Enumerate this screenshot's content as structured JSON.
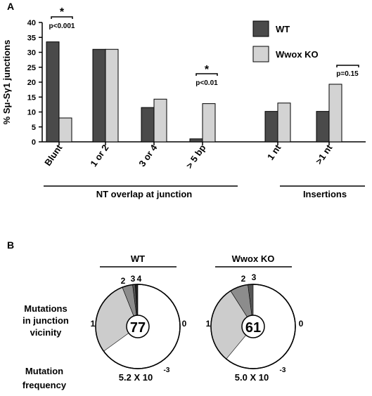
{
  "panels": {
    "a": {
      "label": "A"
    },
    "b": {
      "label": "B"
    }
  },
  "colors": {
    "wt": "#4a4a4a",
    "ko": "#d3d3d3",
    "pie_background": "#ffffff",
    "pie_cat1": "#cccccc",
    "pie_cat2": "#8c8c8c",
    "pie_cat3": "#555555",
    "pie_cat4": "#222222"
  },
  "chart_data": [
    {
      "type": "bar",
      "panel": "A",
      "categories": [
        "Blunt",
        "1 or 2",
        "3 or 4",
        "> 5 bp",
        "1 nt",
        ">1 nt"
      ],
      "series": [
        {
          "name": "WT",
          "values": [
            33.5,
            31,
            11.5,
            1,
            10.2,
            10.2
          ]
        },
        {
          "name": "Wwox KO",
          "values": [
            8,
            31,
            14.3,
            12.8,
            13,
            19.3
          ]
        }
      ],
      "ylabel": "% Sμ-Sγ1 junctions",
      "ylim": [
        0,
        40
      ],
      "yticks": [
        "0",
        "5",
        "10",
        "15",
        "20",
        "25",
        "30",
        "35",
        "40"
      ],
      "legend": {
        "position": "top-right",
        "wt_label": "WT",
        "ko_label": "Wwox KO"
      },
      "groups": [
        {
          "label": "NT overlap at junction",
          "categories": [
            "Blunt",
            "1 or 2",
            "3 or 4",
            "> 5 bp"
          ]
        },
        {
          "label": "Insertions",
          "categories": [
            "1 nt",
            ">1 nt"
          ]
        }
      ],
      "annotations": [
        {
          "category": "Blunt",
          "star": "*",
          "pvalue": "p<0.001"
        },
        {
          "category": "> 5 bp",
          "star": "*",
          "pvalue": "p<0.01"
        },
        {
          "category": ">1 nt",
          "star": "",
          "pvalue": "p=0.15"
        }
      ]
    },
    {
      "type": "pie",
      "panel": "B",
      "title": "WT",
      "center": "77",
      "slice_labels": [
        "0",
        "1",
        "2",
        "3",
        "4"
      ],
      "values": [
        65,
        29,
        4,
        1,
        1
      ],
      "frequency": "5.2 X 10",
      "frequency_exp": "-3"
    },
    {
      "type": "pie",
      "panel": "B",
      "title": "Wwox KO",
      "center": "61",
      "slice_labels": [
        "0",
        "1",
        "2",
        "3"
      ],
      "values": [
        61,
        30,
        7,
        2
      ],
      "frequency": "5.0 X 10",
      "frequency_exp": "-3"
    }
  ],
  "row_labels": {
    "mutations": [
      "Mutations",
      "in junction",
      "vicinity"
    ],
    "frequency": [
      "Mutation",
      "frequency"
    ]
  }
}
